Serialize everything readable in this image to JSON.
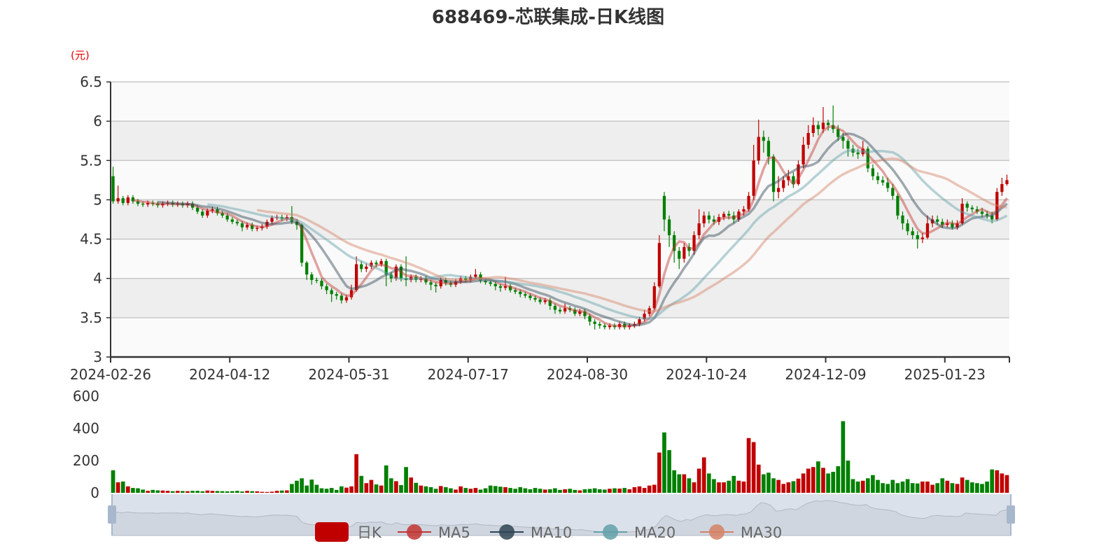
{
  "title": "688469-芯联集成-日K线图",
  "chart_data": {
    "type": "candlestick",
    "title": "688469-芯联集成-日K线图",
    "y_unit": "(元)",
    "ylim": [
      3,
      6.5
    ],
    "y_ticks": [
      "6.5",
      "6",
      "5.5",
      "5",
      "4.5",
      "4",
      "3.5",
      "3"
    ],
    "x_tick_labels": [
      "2024-02-26",
      "2024-04-12",
      "2024-05-31",
      "2024-07-17",
      "2024-08-30",
      "2024-10-24",
      "2024-12-09",
      "2025-01-23"
    ],
    "volume_ylim": [
      0,
      600
    ],
    "volume_ticks": [
      "600",
      "400",
      "200",
      "0"
    ],
    "grid": true,
    "legend_position": "bottom",
    "legend": [
      {
        "name": "日K",
        "color": "#c00000"
      },
      {
        "name": "MA5",
        "color": "#c23531"
      },
      {
        "name": "MA10",
        "color": "#2f4554"
      },
      {
        "name": "MA20",
        "color": "#61a0a8"
      },
      {
        "name": "MA30",
        "color": "#d48265"
      }
    ],
    "colors": {
      "up": "#c00000",
      "down": "#008000"
    },
    "open": [
      5.3,
      4.98,
      5.02,
      4.96,
      5.03,
      4.98,
      4.95,
      4.94,
      4.96,
      4.95,
      4.93,
      4.95,
      4.96,
      4.94,
      4.95,
      4.93,
      4.95,
      4.9,
      4.85,
      4.8,
      4.86,
      4.88,
      4.83,
      4.8,
      4.75,
      4.72,
      4.7,
      4.65,
      4.68,
      4.63,
      4.64,
      4.66,
      4.72,
      4.77,
      4.78,
      4.76,
      4.78,
      4.72,
      4.68,
      4.2,
      4.05,
      3.98,
      3.97,
      3.9,
      3.85,
      3.8,
      3.78,
      3.72,
      3.76,
      3.85,
      4.18,
      4.12,
      4.15,
      4.2,
      4.18,
      4.22,
      4.05,
      4.0,
      4.15,
      4.0,
      3.98,
      4.02,
      3.98,
      4.0,
      3.95,
      3.92,
      3.9,
      3.98,
      3.94,
      3.92,
      3.96,
      4.0,
      3.98,
      4.02,
      4.05,
      3.97,
      3.95,
      3.93,
      3.9,
      3.88,
      3.9,
      3.85,
      3.83,
      3.8,
      3.78,
      3.75,
      3.73,
      3.7,
      3.72,
      3.65,
      3.6,
      3.58,
      3.62,
      3.6,
      3.55,
      3.58,
      3.52,
      3.45,
      3.42,
      3.4,
      3.38,
      3.4,
      3.38,
      3.42,
      3.38,
      3.4,
      3.42,
      3.48,
      3.55,
      3.62,
      3.9,
      5.05,
      4.75,
      4.55,
      4.35,
      4.25,
      4.4,
      4.35,
      4.55,
      4.7,
      4.8,
      4.75,
      4.72,
      4.78,
      4.82,
      4.8,
      4.75,
      4.85,
      4.88,
      5.05,
      5.5,
      5.8,
      5.75,
      5.55,
      5.1,
      5.15,
      5.25,
      5.3,
      5.2,
      5.45,
      5.7,
      5.85,
      5.95,
      5.9,
      5.98,
      5.95,
      5.9,
      5.8,
      5.75,
      5.65,
      5.6,
      5.58,
      5.65,
      5.4,
      5.3,
      5.25,
      5.22,
      5.15,
      5.05,
      4.8,
      4.7,
      4.6,
      4.55,
      4.5,
      4.52,
      4.7,
      4.75,
      4.72,
      4.68,
      4.7,
      4.65,
      4.7,
      4.95,
      4.9,
      4.88,
      4.85,
      4.82,
      4.8,
      4.75,
      5.1,
      5.2
    ],
    "close": [
      4.98,
      5.02,
      4.96,
      5.03,
      4.98,
      4.95,
      4.94,
      4.96,
      4.95,
      4.93,
      4.95,
      4.96,
      4.94,
      4.95,
      4.93,
      4.95,
      4.9,
      4.85,
      4.8,
      4.86,
      4.88,
      4.83,
      4.8,
      4.75,
      4.72,
      4.7,
      4.65,
      4.68,
      4.63,
      4.64,
      4.66,
      4.72,
      4.77,
      4.78,
      4.76,
      4.78,
      4.72,
      4.68,
      4.2,
      4.05,
      3.98,
      3.97,
      3.9,
      3.85,
      3.8,
      3.78,
      3.72,
      3.76,
      3.85,
      4.18,
      4.12,
      4.15,
      4.2,
      4.18,
      4.22,
      4.05,
      4.0,
      4.15,
      4.0,
      3.98,
      4.02,
      3.98,
      4.0,
      3.95,
      3.92,
      3.9,
      3.98,
      3.94,
      3.92,
      3.96,
      4.0,
      3.98,
      4.02,
      4.05,
      3.97,
      3.95,
      3.93,
      3.9,
      3.88,
      3.9,
      3.85,
      3.83,
      3.8,
      3.78,
      3.75,
      3.73,
      3.7,
      3.72,
      3.65,
      3.6,
      3.58,
      3.62,
      3.6,
      3.55,
      3.58,
      3.52,
      3.45,
      3.42,
      3.4,
      3.38,
      3.4,
      3.38,
      3.42,
      3.38,
      3.4,
      3.42,
      3.48,
      3.55,
      3.62,
      3.9,
      4.45,
      4.75,
      4.55,
      4.35,
      4.25,
      4.4,
      4.35,
      4.55,
      4.7,
      4.8,
      4.75,
      4.72,
      4.78,
      4.82,
      4.8,
      4.75,
      4.85,
      4.88,
      5.05,
      5.5,
      5.8,
      5.75,
      5.55,
      5.1,
      5.15,
      5.25,
      5.3,
      5.2,
      5.45,
      5.7,
      5.85,
      5.95,
      5.9,
      5.98,
      5.95,
      5.9,
      5.8,
      5.75,
      5.65,
      5.6,
      5.58,
      5.65,
      5.4,
      5.3,
      5.25,
      5.22,
      5.15,
      5.05,
      4.8,
      4.7,
      4.6,
      4.55,
      4.5,
      4.52,
      4.7,
      4.75,
      4.72,
      4.68,
      4.7,
      4.65,
      4.7,
      4.95,
      4.9,
      4.88,
      4.85,
      4.82,
      4.8,
      4.75,
      5.1,
      5.2,
      5.25
    ],
    "low": [
      4.95,
      4.95,
      4.93,
      4.93,
      4.95,
      4.92,
      4.91,
      4.91,
      4.92,
      4.9,
      4.9,
      4.92,
      4.91,
      4.91,
      4.9,
      4.9,
      4.87,
      4.82,
      4.77,
      4.77,
      4.83,
      4.8,
      4.77,
      4.72,
      4.69,
      4.67,
      4.6,
      4.62,
      4.6,
      4.6,
      4.61,
      4.63,
      4.69,
      4.74,
      4.73,
      4.73,
      4.69,
      4.62,
      4.15,
      3.98,
      3.92,
      3.94,
      3.86,
      3.8,
      3.7,
      3.73,
      3.68,
      3.69,
      3.73,
      3.83,
      4.08,
      4.08,
      4.12,
      4.14,
      4.15,
      3.9,
      3.95,
      3.97,
      3.96,
      3.9,
      3.95,
      3.95,
      3.95,
      3.92,
      3.85,
      3.82,
      3.87,
      3.91,
      3.89,
      3.89,
      3.93,
      3.95,
      3.95,
      3.99,
      3.94,
      3.92,
      3.9,
      3.85,
      3.83,
      3.85,
      3.82,
      3.8,
      3.76,
      3.75,
      3.72,
      3.7,
      3.67,
      3.67,
      3.6,
      3.55,
      3.55,
      3.55,
      3.57,
      3.52,
      3.52,
      3.48,
      3.4,
      3.35,
      3.36,
      3.35,
      3.35,
      3.35,
      3.35,
      3.35,
      3.35,
      3.37,
      3.39,
      3.45,
      3.52,
      3.6,
      3.88,
      4.6,
      4.4,
      4.2,
      4.12,
      4.2,
      4.28,
      4.3,
      4.5,
      4.65,
      4.7,
      4.68,
      4.68,
      4.74,
      4.75,
      4.7,
      4.72,
      4.8,
      4.85,
      5.0,
      5.45,
      5.6,
      5.45,
      4.98,
      5.02,
      5.1,
      5.18,
      5.15,
      5.18,
      5.4,
      5.65,
      5.8,
      5.82,
      5.85,
      5.88,
      5.85,
      5.75,
      5.65,
      5.55,
      5.55,
      5.52,
      5.55,
      5.35,
      5.25,
      5.2,
      5.18,
      5.1,
      5.0,
      4.75,
      4.62,
      4.55,
      4.5,
      4.38,
      4.45,
      4.5,
      4.65,
      4.68,
      4.64,
      4.65,
      4.62,
      4.62,
      4.68,
      4.85,
      4.84,
      4.82,
      4.78,
      4.76,
      4.7,
      4.73,
      5.05,
      5.18
    ],
    "high": [
      5.42,
      5.18,
      5.05,
      5.06,
      5.06,
      5.01,
      4.98,
      4.99,
      4.99,
      4.98,
      4.98,
      4.99,
      4.99,
      4.98,
      4.98,
      4.98,
      4.98,
      4.93,
      4.88,
      4.89,
      4.91,
      4.91,
      4.86,
      4.83,
      4.78,
      4.75,
      4.73,
      4.71,
      4.71,
      4.67,
      4.69,
      4.75,
      4.8,
      4.81,
      4.81,
      4.81,
      4.92,
      4.75,
      4.7,
      4.22,
      4.08,
      4.01,
      4.0,
      3.93,
      3.88,
      3.83,
      3.81,
      3.79,
      3.92,
      4.28,
      4.22,
      4.19,
      4.23,
      4.23,
      4.25,
      4.25,
      4.08,
      4.18,
      4.18,
      4.28,
      4.05,
      4.05,
      4.03,
      4.03,
      3.98,
      3.95,
      4.01,
      4.01,
      3.97,
      3.99,
      4.03,
      4.03,
      4.05,
      4.12,
      4.08,
      4.0,
      3.98,
      3.96,
      3.93,
      4.02,
      3.93,
      3.88,
      3.86,
      3.83,
      3.81,
      3.78,
      3.76,
      3.75,
      3.75,
      3.68,
      3.63,
      3.68,
      3.65,
      3.63,
      3.61,
      3.61,
      3.55,
      3.48,
      3.45,
      3.43,
      3.43,
      3.43,
      3.45,
      3.45,
      3.43,
      3.45,
      3.51,
      3.6,
      3.65,
      3.95,
      4.55,
      5.1,
      4.8,
      4.6,
      4.4,
      4.45,
      4.45,
      4.6,
      4.88,
      4.85,
      4.85,
      4.8,
      4.82,
      4.85,
      4.86,
      4.85,
      4.88,
      4.92,
      5.1,
      5.7,
      6.02,
      5.88,
      5.8,
      5.58,
      5.3,
      5.3,
      5.38,
      5.35,
      5.5,
      5.8,
      5.95,
      6.05,
      6.0,
      6.18,
      6.02,
      6.2,
      5.95,
      5.85,
      5.78,
      5.7,
      5.65,
      5.75,
      5.68,
      5.45,
      5.35,
      5.3,
      5.28,
      5.2,
      5.08,
      4.85,
      4.75,
      4.65,
      4.6,
      4.58,
      4.8,
      4.8,
      4.8,
      4.76,
      4.75,
      4.74,
      4.74,
      5.02,
      4.98,
      4.93,
      4.92,
      4.9,
      4.86,
      4.85,
      5.15,
      5.28,
      5.32
    ],
    "volume": [
      140,
      65,
      70,
      40,
      30,
      28,
      20,
      12,
      18,
      15,
      14,
      12,
      10,
      12,
      11,
      10,
      12,
      12,
      9,
      14,
      12,
      11,
      10,
      9,
      10,
      12,
      8,
      12,
      10,
      9,
      6,
      5,
      7,
      12,
      14,
      15,
      55,
      75,
      90,
      45,
      82,
      50,
      28,
      25,
      30,
      18,
      40,
      32,
      40,
      240,
      105,
      60,
      80,
      52,
      45,
      170,
      90,
      72,
      48,
      160,
      95,
      62,
      45,
      40,
      35,
      25,
      42,
      35,
      28,
      20,
      40,
      30,
      25,
      30,
      20,
      28,
      45,
      42,
      38,
      35,
      30,
      25,
      35,
      28,
      22,
      30,
      25,
      20,
      22,
      28,
      18,
      22,
      25,
      18,
      15,
      22,
      24,
      28,
      22,
      20,
      25,
      28,
      26,
      30,
      22,
      35,
      40,
      30,
      45,
      50,
      250,
      375,
      265,
      140,
      115,
      115,
      90,
      65,
      150,
      220,
      120,
      85,
      65,
      65,
      75,
      105,
      75,
      70,
      340,
      315,
      175,
      115,
      125,
      90,
      80,
      55,
      65,
      72,
      88,
      120,
      150,
      160,
      195,
      155,
      120,
      130,
      165,
      445,
      200,
      85,
      70,
      75,
      90,
      110,
      80,
      60,
      55,
      80,
      60,
      70,
      85,
      60,
      58,
      70,
      70,
      50,
      60,
      90,
      75,
      60,
      55,
      95,
      80,
      65,
      60,
      55,
      70,
      145,
      140,
      120,
      110
    ]
  }
}
